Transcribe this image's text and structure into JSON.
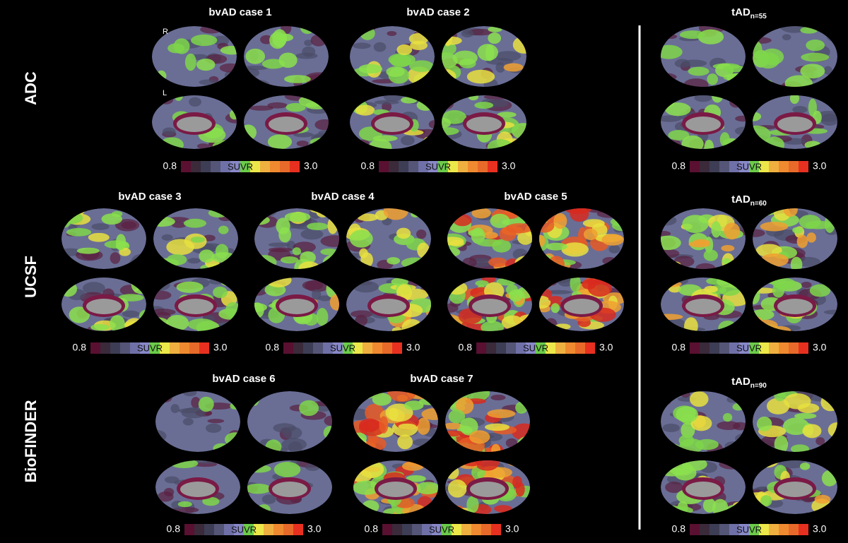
{
  "rows": [
    {
      "label": "ADC",
      "cases": [
        {
          "title": "bvAD case 1",
          "hemisphere_labels": [
            "R",
            "L"
          ]
        },
        {
          "title": "bvAD case 2"
        }
      ],
      "tad": {
        "title": "tAD",
        "subscript": "n=55"
      }
    },
    {
      "label": "UCSF",
      "cases": [
        {
          "title": "bvAD case 3"
        },
        {
          "title": "bvAD case 4"
        },
        {
          "title": "bvAD case 5"
        }
      ],
      "tad": {
        "title": "tAD",
        "subscript": "n=60"
      }
    },
    {
      "label": "BioFINDER",
      "cases": [
        {
          "title": "bvAD case 6"
        },
        {
          "title": "bvAD case 7"
        }
      ],
      "tad": {
        "title": "tAD",
        "subscript": "n=90"
      }
    }
  ],
  "colorbar": {
    "min": "0.8",
    "label": "SUVR",
    "max": "3.0"
  }
}
